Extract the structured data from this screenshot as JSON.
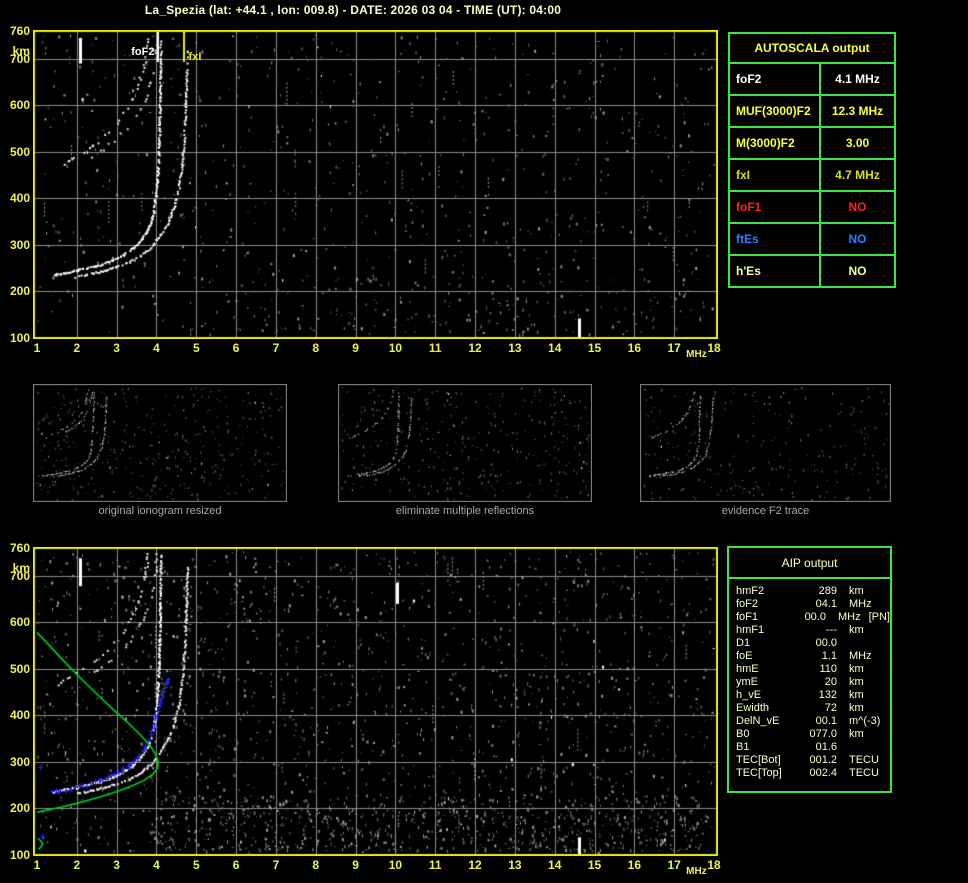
{
  "title": "La_Spezia (lat: +44.1 , lon: 009.8) - DATE: 2026 03 04 - TIME (UT): 04:00",
  "colors": {
    "axis_yellow": "#f2f24e",
    "border_yellow": "#eded00",
    "grid_gray": "#8a8a8a",
    "table_green": "#3ce63c",
    "trace_white": "#ffffff",
    "profile_green": "#00d020",
    "autotrace_blue": "#2424ff",
    "caption_gray": "#a9a9a9"
  },
  "autoscala": {
    "header": "AUTOSCALA output",
    "rows": [
      {
        "label": "foF2",
        "value": "4.1 MHz",
        "color": "#ffffff"
      },
      {
        "label": "MUF(3000)F2",
        "value": "12.3 MHz",
        "color": "#ffff2e"
      },
      {
        "label": "M(3000)F2",
        "value": "3.00",
        "color": "#ffff2e"
      },
      {
        "label": "fxI",
        "value": "4.7 MHz",
        "color": "#dede00"
      },
      {
        "label": "foF1",
        "value": "NO",
        "color": "#ff2222"
      },
      {
        "label": "ftEs",
        "value": "NO",
        "color": "#2a7fff"
      },
      {
        "label": "h'Es",
        "value": "NO",
        "color": "#ffff96"
      }
    ]
  },
  "aip": {
    "header": "AIP output",
    "rows": [
      {
        "label": "hmF2",
        "value": "289",
        "unit": "km",
        "note": ""
      },
      {
        "label": "foF2",
        "value": "04.1",
        "unit": "MHz",
        "note": ""
      },
      {
        "label": "foF1",
        "value": "00.0",
        "unit": "MHz",
        "note": "[PN]"
      },
      {
        "label": "hmF1",
        "value": "---",
        "unit": "km",
        "note": ""
      },
      {
        "label": "D1",
        "value": "00.0",
        "unit": "",
        "note": ""
      },
      {
        "label": "foE",
        "value": "1.1",
        "unit": "MHz",
        "note": ""
      },
      {
        "label": "hmE",
        "value": "110",
        "unit": "km",
        "note": ""
      },
      {
        "label": "ymE",
        "value": "20",
        "unit": "km",
        "note": ""
      },
      {
        "label": "h_vE",
        "value": "132",
        "unit": "km",
        "note": ""
      },
      {
        "label": "Ewidth",
        "value": "72",
        "unit": "km",
        "note": ""
      },
      {
        "label": "DelN_vE",
        "value": "00.1",
        "unit": "m^(-3)",
        "note": ""
      },
      {
        "label": "B0",
        "value": "077.0",
        "unit": "km",
        "note": ""
      },
      {
        "label": "B1",
        "value": "01.6",
        "unit": "",
        "note": ""
      },
      {
        "label": "TEC[Bot]",
        "value": "001.2",
        "unit": "TECU",
        "note": ""
      },
      {
        "label": "TEC[Top]",
        "value": "002.4",
        "unit": "TECU",
        "note": ""
      }
    ]
  },
  "thumbnails": [
    {
      "caption": "original ionogram resized",
      "seed": 11,
      "noise": 380,
      "traces": [
        "o_trace",
        "x_trace",
        "hop1",
        "hop2"
      ]
    },
    {
      "caption": "eliminate multiple reflections",
      "seed": 22,
      "noise": 330,
      "traces": [
        "o_trace",
        "x_trace",
        "hop1"
      ]
    },
    {
      "caption": "evidence F2 trace",
      "seed": 33,
      "noise": 250,
      "traces": [
        "o_trace",
        "x_trace",
        "hop1"
      ]
    }
  ],
  "chart_data": [
    {
      "type": "scatter",
      "name": "ionogram-with-autoscala-markers",
      "x_unit": "MHz",
      "y_unit": "km",
      "xlim": [
        1,
        18
      ],
      "ylim": [
        100,
        760
      ],
      "xticks": [
        1,
        2,
        3,
        4,
        5,
        6,
        7,
        8,
        9,
        10,
        11,
        12,
        13,
        14,
        15,
        16,
        17,
        18
      ],
      "yticks": [
        760,
        700,
        600,
        500,
        400,
        300,
        200,
        100
      ],
      "grid": true,
      "markers": [
        {
          "label": "foF2",
          "mhz": 4.05,
          "color": "#ffffff"
        },
        {
          "label": "fxI",
          "mhz": 4.68,
          "color": "#eeee00"
        }
      ],
      "traces": {
        "o_trace": [
          [
            1.38,
            237
          ],
          [
            1.7,
            242
          ],
          [
            2.0,
            247
          ],
          [
            2.3,
            253
          ],
          [
            2.6,
            260
          ],
          [
            2.9,
            269
          ],
          [
            3.15,
            280
          ],
          [
            3.4,
            295
          ],
          [
            3.6,
            313
          ],
          [
            3.78,
            336
          ],
          [
            3.9,
            366
          ],
          [
            3.97,
            405
          ],
          [
            4.02,
            455
          ],
          [
            4.05,
            520
          ],
          [
            4.07,
            600
          ],
          [
            4.085,
            680
          ],
          [
            4.09,
            745
          ]
        ],
        "x_trace": [
          [
            1.95,
            233
          ],
          [
            2.3,
            239
          ],
          [
            2.65,
            246
          ],
          [
            3.0,
            255
          ],
          [
            3.3,
            265
          ],
          [
            3.6,
            279
          ],
          [
            3.85,
            297
          ],
          [
            4.05,
            318
          ],
          [
            4.25,
            345
          ],
          [
            4.42,
            380
          ],
          [
            4.55,
            425
          ],
          [
            4.64,
            485
          ],
          [
            4.7,
            560
          ],
          [
            4.74,
            645
          ],
          [
            4.76,
            720
          ]
        ],
        "hop1": [
          [
            1.5,
            468
          ],
          [
            1.8,
            482
          ],
          [
            2.1,
            498
          ],
          [
            2.4,
            516
          ],
          [
            2.7,
            538
          ],
          [
            2.95,
            560
          ],
          [
            3.2,
            588
          ],
          [
            3.4,
            618
          ],
          [
            3.55,
            650
          ],
          [
            3.68,
            692
          ],
          [
            3.76,
            740
          ],
          [
            3.8,
            760
          ]
        ],
        "hop2": [
          [
            2.35,
            492
          ],
          [
            2.65,
            508
          ],
          [
            2.95,
            528
          ],
          [
            3.25,
            553
          ],
          [
            3.5,
            582
          ],
          [
            3.7,
            615
          ],
          [
            3.85,
            655
          ],
          [
            3.95,
            705
          ],
          [
            4.0,
            752
          ]
        ]
      },
      "bright_marks": [
        [
          2.08,
          690,
          745
        ],
        [
          14.62,
          100,
          142
        ]
      ],
      "noise": {
        "seed": 7,
        "count": 760,
        "streaks": 22,
        "bottom_extra": 120
      }
    },
    {
      "type": "scatter",
      "name": "ionogram-with-aip-profile",
      "x_unit": "MHz",
      "y_unit": "km",
      "xlim": [
        1,
        18
      ],
      "ylim": [
        100,
        760
      ],
      "xticks": [
        1,
        2,
        3,
        4,
        5,
        6,
        7,
        8,
        9,
        10,
        11,
        12,
        13,
        14,
        15,
        16,
        17,
        18
      ],
      "yticks": [
        760,
        700,
        600,
        500,
        400,
        300,
        200,
        100
      ],
      "grid": true,
      "markers": [],
      "traces": {
        "o_trace": [
          [
            1.38,
            237
          ],
          [
            1.7,
            242
          ],
          [
            2.0,
            247
          ],
          [
            2.3,
            253
          ],
          [
            2.6,
            260
          ],
          [
            2.9,
            269
          ],
          [
            3.15,
            280
          ],
          [
            3.4,
            295
          ],
          [
            3.6,
            313
          ],
          [
            3.78,
            336
          ],
          [
            3.9,
            366
          ],
          [
            3.97,
            405
          ],
          [
            4.02,
            455
          ],
          [
            4.05,
            520
          ],
          [
            4.07,
            600
          ],
          [
            4.085,
            680
          ],
          [
            4.09,
            745
          ]
        ],
        "x_trace": [
          [
            1.95,
            233
          ],
          [
            2.3,
            239
          ],
          [
            2.65,
            246
          ],
          [
            3.0,
            255
          ],
          [
            3.3,
            265
          ],
          [
            3.6,
            279
          ],
          [
            3.85,
            297
          ],
          [
            4.05,
            318
          ],
          [
            4.25,
            345
          ],
          [
            4.42,
            380
          ],
          [
            4.55,
            425
          ],
          [
            4.64,
            485
          ],
          [
            4.7,
            560
          ],
          [
            4.74,
            645
          ],
          [
            4.76,
            720
          ]
        ],
        "hop1": [
          [
            1.5,
            468
          ],
          [
            1.8,
            482
          ],
          [
            2.1,
            498
          ],
          [
            2.4,
            516
          ],
          [
            2.7,
            538
          ],
          [
            2.95,
            560
          ],
          [
            3.2,
            588
          ],
          [
            3.4,
            618
          ],
          [
            3.55,
            650
          ],
          [
            3.68,
            692
          ],
          [
            3.76,
            740
          ],
          [
            3.8,
            760
          ]
        ],
        "hop2": [
          [
            2.35,
            492
          ],
          [
            2.65,
            508
          ],
          [
            2.95,
            528
          ],
          [
            3.25,
            553
          ],
          [
            3.5,
            582
          ],
          [
            3.7,
            615
          ],
          [
            3.85,
            655
          ],
          [
            3.95,
            705
          ],
          [
            4.0,
            752
          ]
        ]
      },
      "profile": [
        [
          1.0,
          578
        ],
        [
          1.25,
          556
        ],
        [
          1.55,
          528
        ],
        [
          1.9,
          497
        ],
        [
          2.25,
          467
        ],
        [
          2.6,
          438
        ],
        [
          2.95,
          410
        ],
        [
          3.3,
          383
        ],
        [
          3.6,
          358
        ],
        [
          3.82,
          337
        ],
        [
          3.97,
          318
        ],
        [
          4.05,
          300
        ],
        [
          4.02,
          286
        ],
        [
          3.9,
          273
        ],
        [
          3.7,
          261
        ],
        [
          3.42,
          250
        ],
        [
          3.1,
          239
        ],
        [
          2.75,
          229
        ],
        [
          2.38,
          220
        ],
        [
          2.0,
          211
        ],
        [
          1.62,
          203
        ],
        [
          1.28,
          197
        ],
        [
          1.0,
          192
        ]
      ],
      "profile_e": [
        [
          1.02,
          136
        ],
        [
          1.1,
          130
        ],
        [
          1.14,
          124
        ],
        [
          1.1,
          117
        ],
        [
          1.03,
          112
        ]
      ],
      "autoscaled_trace": {
        "points": [
          [
            1.35,
            236
          ],
          [
            1.6,
            238
          ],
          [
            1.85,
            242
          ],
          [
            2.1,
            248
          ],
          [
            2.35,
            254
          ],
          [
            2.6,
            261
          ],
          [
            2.85,
            270
          ],
          [
            3.1,
            281
          ],
          [
            3.3,
            293
          ],
          [
            3.5,
            308
          ],
          [
            3.68,
            327
          ],
          [
            3.82,
            349
          ],
          [
            3.93,
            375
          ],
          [
            4.0,
            402
          ],
          [
            4.08,
            430
          ],
          [
            4.16,
            452
          ],
          [
            4.25,
            470
          ],
          [
            4.33,
            481
          ]
        ],
        "isolated": [
          [
            1.07,
            290
          ],
          [
            1.12,
            140
          ]
        ]
      },
      "bright_marks": [
        [
          2.08,
          678,
          738
        ],
        [
          14.62,
          100,
          138
        ],
        [
          10.05,
          640,
          685
        ]
      ],
      "noise": {
        "seed": 13,
        "count": 1500,
        "streaks": 40,
        "bottom_extra": 650
      }
    }
  ]
}
